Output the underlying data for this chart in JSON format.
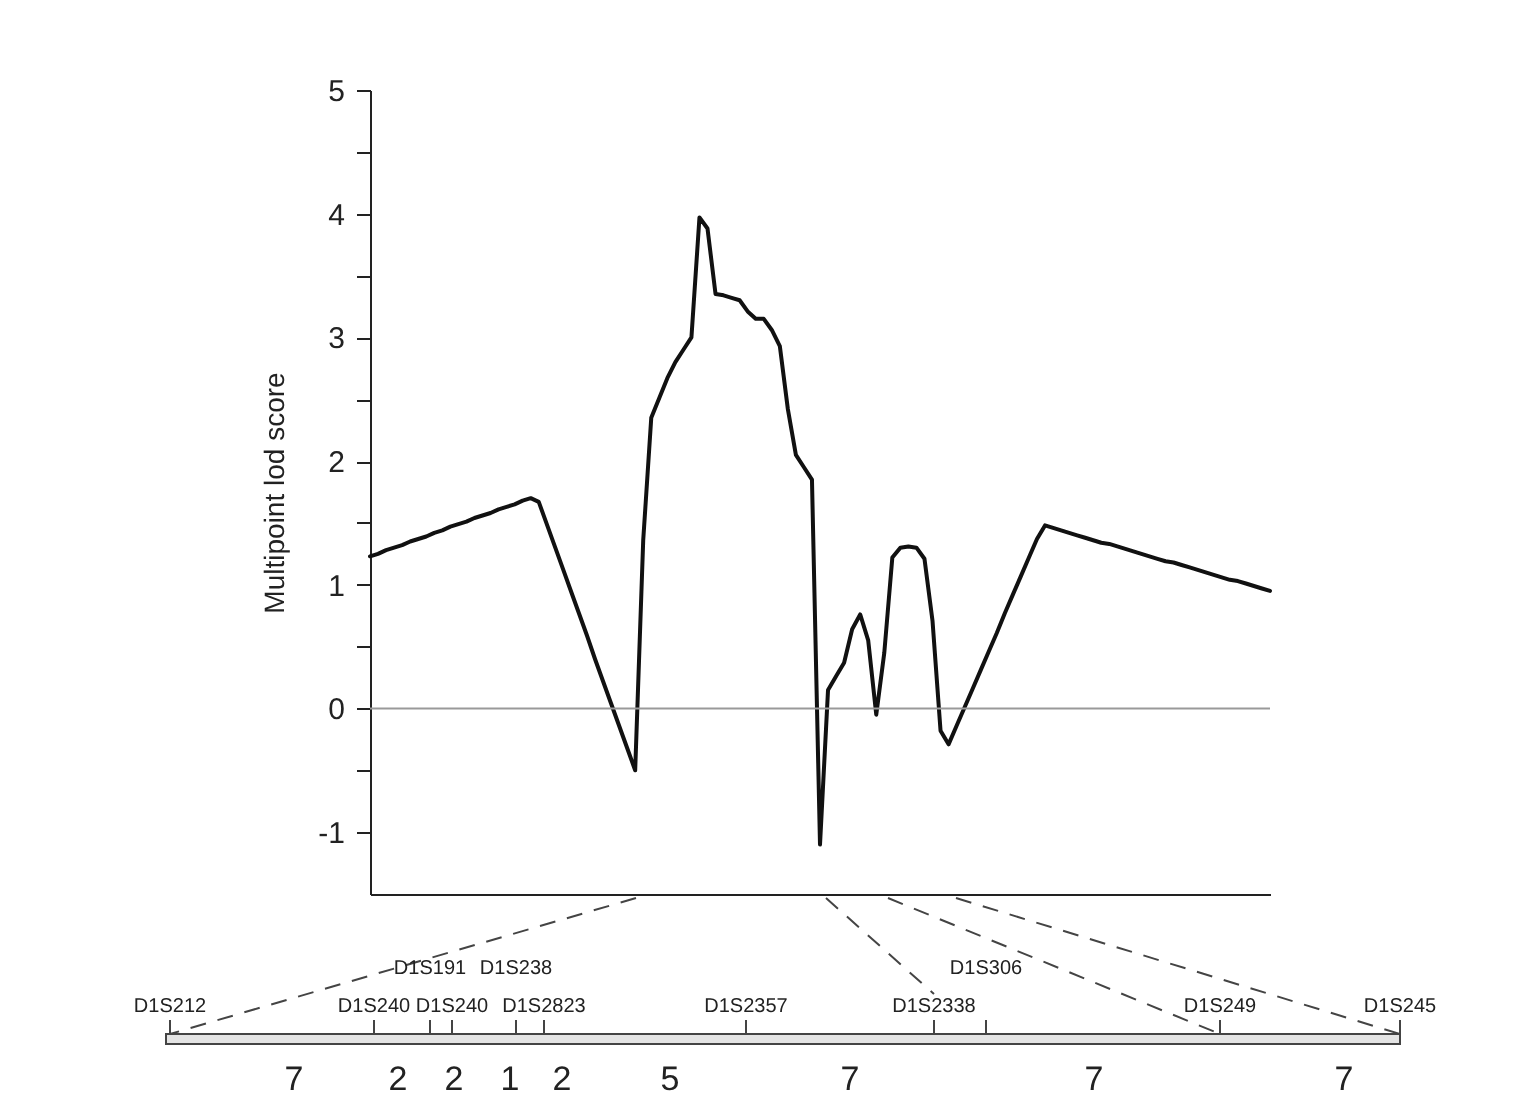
{
  "chart_data": {
    "type": "line",
    "ylabel": "Multipoint lod score",
    "categories": [
      null,
      null,
      null,
      null,
      null,
      null,
      null,
      null,
      null,
      null,
      null,
      null,
      null,
      null,
      null,
      null,
      null,
      null,
      null,
      null,
      null,
      null,
      null,
      null,
      null,
      null,
      null,
      null,
      null,
      null,
      null,
      null,
      null,
      null,
      null,
      null,
      null,
      null,
      null,
      null,
      null,
      null,
      null,
      null,
      null,
      null,
      null,
      null,
      null,
      null,
      null,
      null,
      null,
      null,
      null,
      null,
      null,
      null,
      null,
      null,
      null,
      null,
      null,
      null,
      null,
      null,
      null,
      null,
      null,
      null,
      null,
      null,
      null,
      null,
      null,
      null,
      null,
      null,
      null,
      null,
      null,
      null,
      null,
      null,
      null,
      null,
      null,
      null,
      null,
      null,
      null,
      null,
      null,
      null,
      null,
      null,
      null,
      null,
      null,
      null,
      null,
      null,
      null,
      null,
      null,
      null,
      null,
      null,
      null,
      null,
      null,
      null,
      null
    ],
    "series": [
      {
        "color": "#111111",
        "values": [
          1.23,
          1.25,
          1.28,
          1.3,
          1.32,
          1.35,
          1.37,
          1.39,
          1.42,
          1.44,
          1.47,
          1.49,
          1.51,
          1.54,
          1.56,
          1.58,
          1.61,
          1.63,
          1.65,
          1.68,
          1.7,
          1.67,
          1.49,
          1.31,
          1.13,
          0.95,
          0.77,
          0.59,
          0.4,
          0.22,
          0.04,
          -0.14,
          -0.32,
          -0.5,
          1.36,
          2.35,
          2.51,
          2.67,
          2.8,
          2.9,
          3.0,
          3.97,
          3.88,
          3.35,
          3.34,
          3.32,
          3.3,
          3.21,
          3.15,
          3.15,
          3.06,
          2.93,
          2.42,
          2.05,
          1.95,
          1.85,
          -1.1,
          0.15,
          0.26,
          0.37,
          0.64,
          0.76,
          0.55,
          -0.05,
          0.45,
          1.22,
          1.3,
          1.31,
          1.3,
          1.21,
          0.71,
          -0.18,
          -0.29,
          -0.14,
          0.01,
          0.16,
          0.31,
          0.46,
          0.61,
          0.77,
          0.92,
          1.07,
          1.22,
          1.37,
          1.48,
          1.46,
          1.44,
          1.42,
          1.4,
          1.38,
          1.36,
          1.34,
          1.33,
          1.31,
          1.29,
          1.27,
          1.25,
          1.23,
          1.21,
          1.19,
          1.18,
          1.16,
          1.14,
          1.12,
          1.1,
          1.08,
          1.06,
          1.04,
          1.03,
          1.01,
          0.99,
          0.97,
          0.95
        ]
      }
    ],
    "ylim": [
      -1.5,
      5
    ],
    "yticks": [
      -1,
      {
        "value": -0.5,
        "label": null
      },
      0,
      {
        "value": 0.5,
        "label": null
      },
      1,
      {
        "value": 1.5,
        "label": null
      },
      2,
      {
        "value": 2.5,
        "label": null
      },
      3,
      {
        "value": 3.5,
        "label": null
      },
      4,
      {
        "value": 4.5,
        "label": null
      },
      5
    ],
    "ref_lines": [
      {
        "axis": "y",
        "value": 0,
        "color": "#999999"
      }
    ],
    "tick_labels": "y",
    "line_style": "solid",
    "annotations": [
      "D1S212",
      "D1S240",
      "D1S191",
      "D1S240",
      "D1S238",
      "D1S2823",
      "D1S2357",
      "D1S2338",
      "D1S306",
      "D1S249",
      "D1S245",
      "7",
      "2",
      "2",
      "1",
      "2",
      "5",
      "7",
      "7",
      "7"
    ]
  }
}
